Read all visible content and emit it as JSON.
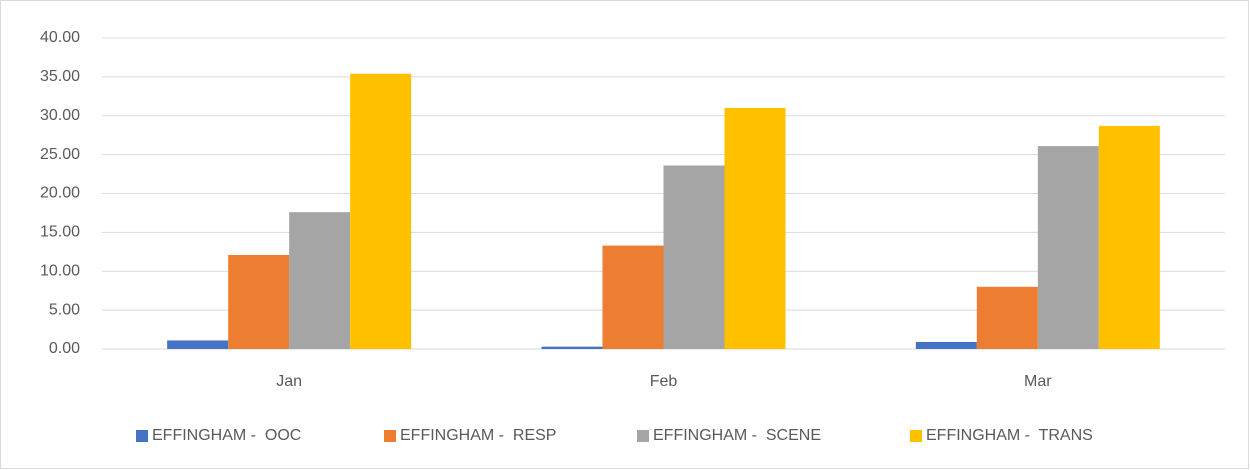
{
  "chart_data": {
    "type": "bar",
    "categories": [
      "Jan",
      "Feb",
      "Mar"
    ],
    "series": [
      {
        "name": "EFFINGHAM -  OOC",
        "color": "#4472c4",
        "values": [
          1.1,
          0.3,
          0.9
        ]
      },
      {
        "name": "EFFINGHAM -  RESP",
        "color": "#ed7d31",
        "values": [
          12.1,
          13.3,
          8.0
        ]
      },
      {
        "name": "EFFINGHAM -  SCENE",
        "color": "#a5a5a5",
        "values": [
          17.6,
          23.6,
          26.1
        ]
      },
      {
        "name": "EFFINGHAM -  TRANS",
        "color": "#ffc000",
        "values": [
          35.4,
          31.0,
          28.7
        ]
      }
    ],
    "ylim": [
      0,
      40
    ],
    "yticks": [
      {
        "value": 0,
        "label": "0.00"
      },
      {
        "value": 5,
        "label": "5.00"
      },
      {
        "value": 10,
        "label": "10.00"
      },
      {
        "value": 15,
        "label": "15.00"
      },
      {
        "value": 20,
        "label": "20.00"
      },
      {
        "value": 25,
        "label": "25.00"
      },
      {
        "value": 30,
        "label": "30.00"
      },
      {
        "value": 35,
        "label": "35.00"
      },
      {
        "value": 40,
        "label": "40.00"
      }
    ],
    "grid": true,
    "legend": "bottom"
  }
}
